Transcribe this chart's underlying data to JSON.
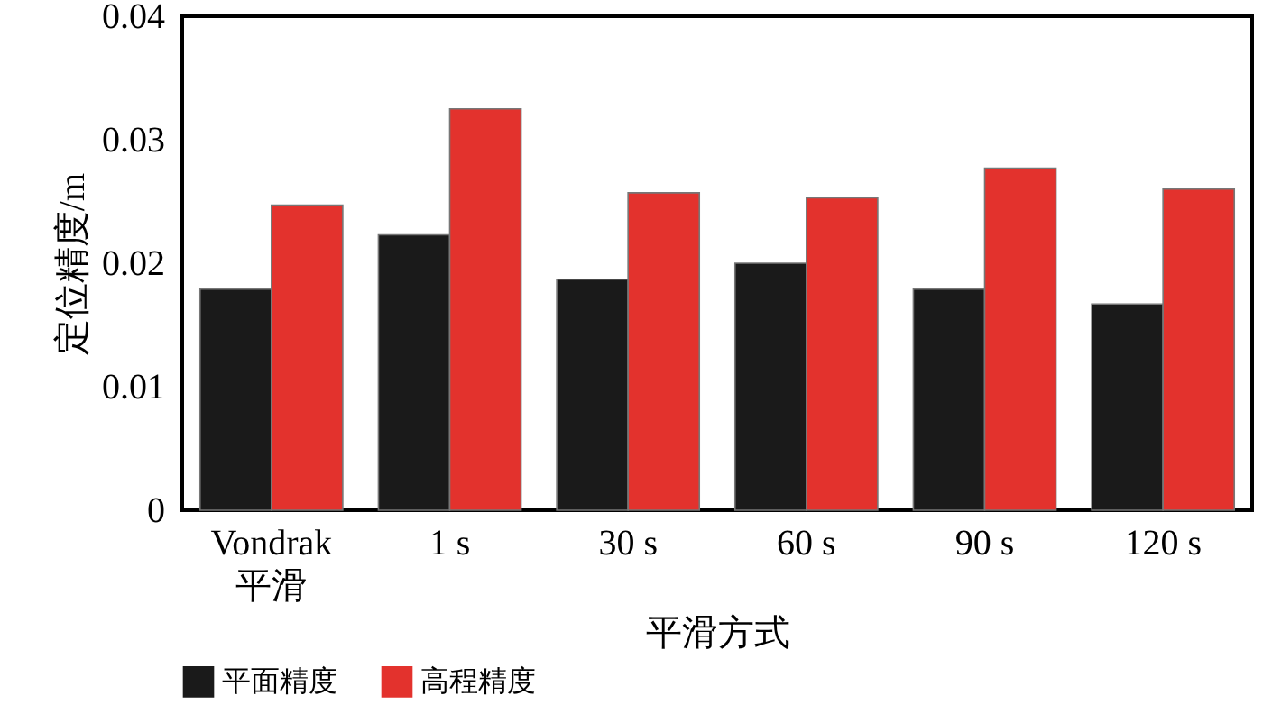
{
  "chart_data": {
    "type": "bar",
    "xlabel": "平滑方式",
    "ylabel": "定位精度/m",
    "categories": [
      "Vondrak\n平滑",
      "1 s",
      "30 s",
      "60 s",
      "90 s",
      "120 s"
    ],
    "series": [
      {
        "name": "平面精度",
        "color": "#1a1a1a",
        "values": [
          0.0179,
          0.0223,
          0.0187,
          0.02,
          0.0179,
          0.0167
        ]
      },
      {
        "name": "高程精度",
        "color": "#e3322d",
        "values": [
          0.0247,
          0.0325,
          0.0257,
          0.0253,
          0.0277,
          0.026
        ]
      }
    ],
    "ylim": [
      0,
      0.04
    ],
    "yticks": [
      0,
      0.01,
      0.02,
      0.03,
      0.04
    ],
    "legend": "bottom"
  }
}
